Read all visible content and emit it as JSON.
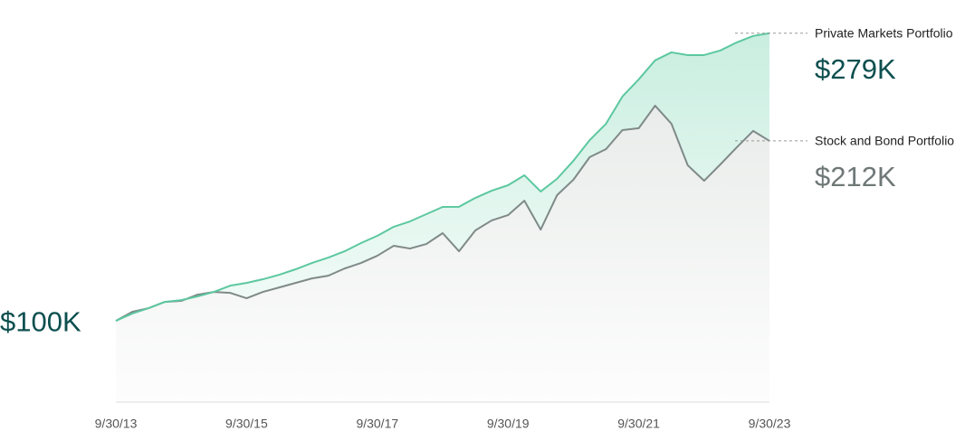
{
  "chart_data": {
    "type": "area",
    "categories": [
      "9/30/13",
      null,
      null,
      null,
      null,
      null,
      null,
      null,
      "9/30/15",
      null,
      null,
      null,
      null,
      null,
      null,
      null,
      "9/30/17",
      null,
      null,
      null,
      null,
      null,
      null,
      null,
      "9/30/19",
      null,
      null,
      null,
      null,
      null,
      null,
      null,
      "9/30/21",
      null,
      null,
      null,
      null,
      null,
      null,
      null,
      "9/30/23"
    ],
    "ylim": [
      50,
      280
    ],
    "series": [
      {
        "name": "Private Markets Portfolio",
        "color": "#5cc8a0",
        "values": [
          100,
          104.5,
          107.9,
          111.8,
          112.9,
          115.2,
          118.0,
          121.9,
          123.6,
          125.9,
          128.7,
          132.1,
          136.0,
          139.4,
          143.3,
          148.4,
          152.9,
          158.5,
          161.9,
          166.4,
          170.9,
          171.0,
          176.5,
          181.0,
          184.4,
          190.6,
          180.5,
          188.4,
          199.6,
          212.5,
          222.7,
          239.6,
          250.3,
          262.1,
          267.1,
          265.4,
          265.4,
          268.3,
          273.3,
          277.3,
          279
        ],
        "value_labels": [
          "$100K",
          null,
          null,
          null,
          null,
          null,
          null,
          null,
          null,
          null,
          null,
          null,
          null,
          null,
          null,
          null,
          null,
          null,
          null,
          null,
          null,
          null,
          null,
          null,
          null,
          null,
          null,
          null,
          null,
          null,
          null,
          null,
          null,
          null,
          null,
          null,
          null,
          null,
          null,
          null,
          "$279K"
        ]
      },
      {
        "name": "Stock and Bond Portfolio",
        "color": "#7f8a89",
        "values": [
          100,
          105.6,
          107.9,
          111.8,
          112.4,
          116.3,
          118.0,
          117.4,
          114.1,
          118.0,
          120.8,
          123.6,
          126.4,
          128.1,
          132.6,
          136.0,
          140.5,
          146.7,
          145.0,
          147.8,
          154.6,
          143.3,
          156.3,
          162.5,
          165.8,
          174.8,
          156.8,
          178.2,
          187.8,
          201.9,
          206.9,
          218.7,
          219.9,
          233.9,
          222.7,
          196.8,
          187.2,
          197.4,
          208.0,
          218.2,
          212
        ],
        "value_labels": [
          null,
          null,
          null,
          null,
          null,
          null,
          null,
          null,
          null,
          null,
          null,
          null,
          null,
          null,
          null,
          null,
          null,
          null,
          null,
          null,
          null,
          null,
          null,
          null,
          null,
          null,
          null,
          null,
          null,
          null,
          null,
          null,
          null,
          null,
          null,
          null,
          null,
          null,
          null,
          null,
          "$212K"
        ]
      }
    ]
  }
}
